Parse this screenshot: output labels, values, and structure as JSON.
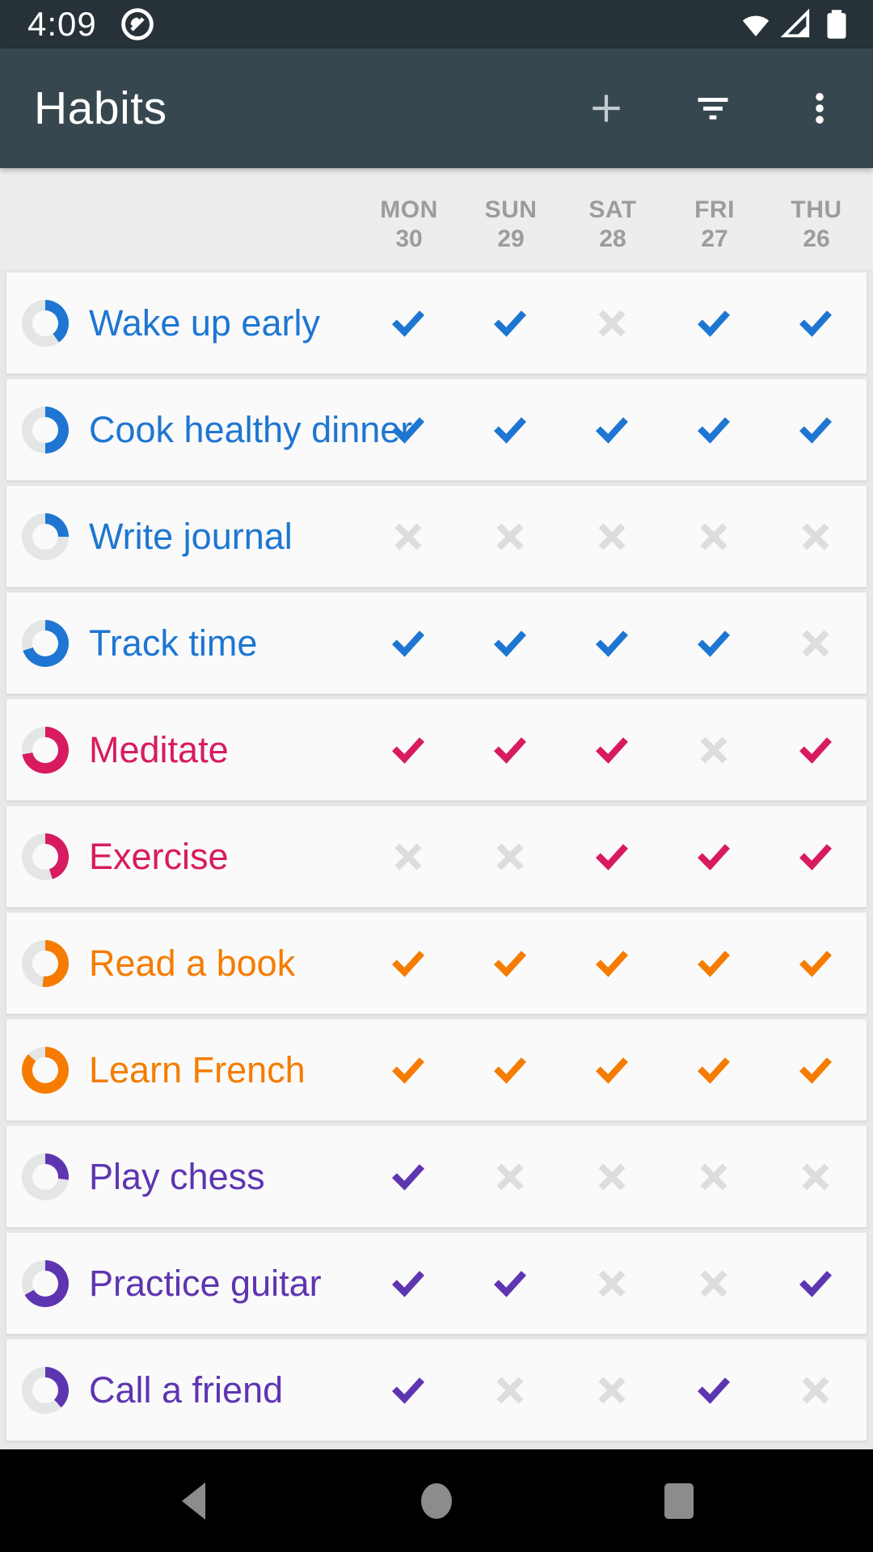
{
  "status_bar": {
    "time": "4:09",
    "left_icons": [
      "screen-record-icon"
    ],
    "right_icons": [
      "wifi-icon",
      "cell-signal-icon",
      "battery-icon"
    ]
  },
  "app_bar": {
    "title": "Habits",
    "actions": [
      {
        "name": "add",
        "icon": "plus-icon"
      },
      {
        "name": "filter",
        "icon": "filter-icon"
      },
      {
        "name": "more",
        "icon": "overflow-menu-icon"
      }
    ]
  },
  "week_header": {
    "days": [
      {
        "label": "MON",
        "date": "30"
      },
      {
        "label": "SUN",
        "date": "29"
      },
      {
        "label": "SAT",
        "date": "28"
      },
      {
        "label": "FRI",
        "date": "27"
      },
      {
        "label": "THU",
        "date": "26"
      }
    ]
  },
  "habits": [
    {
      "name": "Wake up early",
      "color": "blue",
      "progress": 0.4,
      "marks": [
        "check",
        "check",
        "cross",
        "check",
        "check"
      ]
    },
    {
      "name": "Cook healthy dinner",
      "color": "blue",
      "progress": 0.5,
      "marks": [
        "check",
        "check",
        "check",
        "check",
        "check"
      ]
    },
    {
      "name": "Write journal",
      "color": "blue",
      "progress": 0.25,
      "marks": [
        "cross",
        "cross",
        "cross",
        "cross",
        "cross"
      ]
    },
    {
      "name": "Track time",
      "color": "blue",
      "progress": 0.7,
      "marks": [
        "check",
        "check",
        "check",
        "check",
        "cross"
      ]
    },
    {
      "name": "Meditate",
      "color": "pink",
      "progress": 0.72,
      "marks": [
        "check",
        "check",
        "check",
        "cross",
        "check"
      ]
    },
    {
      "name": "Exercise",
      "color": "pink",
      "progress": 0.45,
      "marks": [
        "cross",
        "cross",
        "check",
        "check",
        "check"
      ]
    },
    {
      "name": "Read a book",
      "color": "orange",
      "progress": 0.52,
      "marks": [
        "check",
        "check",
        "check",
        "check",
        "check"
      ]
    },
    {
      "name": "Learn French",
      "color": "orange",
      "progress": 0.87,
      "marks": [
        "check",
        "check",
        "check",
        "check",
        "check"
      ]
    },
    {
      "name": "Play chess",
      "color": "purple",
      "progress": 0.27,
      "marks": [
        "check",
        "cross",
        "cross",
        "cross",
        "cross"
      ]
    },
    {
      "name": "Practice guitar",
      "color": "purple",
      "progress": 0.67,
      "marks": [
        "check",
        "check",
        "cross",
        "cross",
        "check"
      ]
    },
    {
      "name": "Call a friend",
      "color": "purple",
      "progress": 0.38,
      "marks": [
        "check",
        "cross",
        "cross",
        "check",
        "cross"
      ]
    }
  ],
  "colors": {
    "blue": "#1E76D2",
    "pink": "#D81B60",
    "orange": "#F57C00",
    "purple": "#5E35B1",
    "cross_gray": "#DBDDDE",
    "ring_track": "#E4E5E5",
    "status_bar_bg": "#263238",
    "app_bar_bg": "#37474F",
    "nav_icon_gray": "#8C8C8C"
  },
  "nav_bar": {
    "buttons": [
      {
        "name": "back",
        "icon": "back-triangle-icon"
      },
      {
        "name": "home",
        "icon": "home-circle-icon"
      },
      {
        "name": "recents",
        "icon": "recents-square-icon"
      }
    ]
  }
}
